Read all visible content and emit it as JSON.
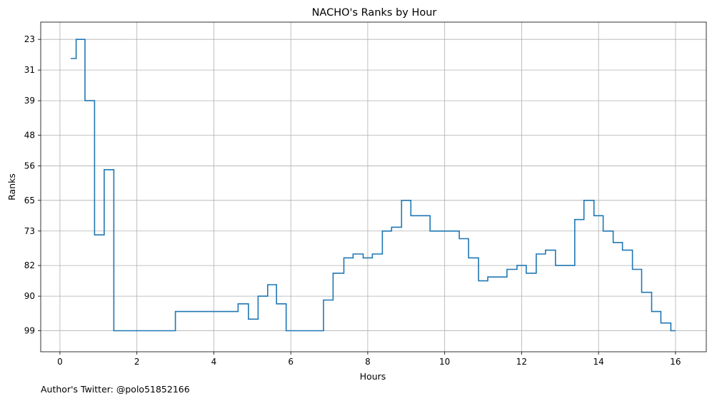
{
  "chart_data": {
    "type": "line",
    "drawstyle": "steps-post",
    "title": "NACHO's Ranks by Hour",
    "xlabel": "Hours",
    "ylabel": "Ranks",
    "xlim": [
      -0.5,
      16.8
    ],
    "ylim": [
      104.5,
      18.5
    ],
    "y_inverted": true,
    "x_ticks": [
      0,
      2,
      4,
      6,
      8,
      10,
      12,
      14,
      16
    ],
    "y_ticks": [
      23,
      31,
      39,
      48,
      56,
      65,
      73,
      82,
      90,
      99
    ],
    "grid": true,
    "line_color": "#1f77b4",
    "series": [
      {
        "x": [
          0.28,
          0.42,
          0.65,
          0.9,
          1.15,
          1.4,
          2.0,
          3.0,
          4.0,
          4.63,
          4.9,
          5.15,
          5.4,
          5.63,
          5.88,
          6.85,
          7.1,
          7.38,
          7.62,
          7.88,
          8.12,
          8.38,
          8.62,
          8.88,
          9.12,
          9.62,
          10.38,
          10.62,
          10.88,
          11.12,
          11.62,
          11.88,
          12.12,
          12.38,
          12.62,
          12.88,
          13.38,
          13.62,
          13.88,
          14.12,
          14.38,
          14.62,
          14.88,
          15.12,
          15.38,
          15.62,
          15.88,
          16.0
        ],
        "y": [
          28,
          23,
          39,
          74,
          57,
          99,
          99,
          94,
          94,
          92,
          96,
          90,
          87,
          92,
          99,
          91,
          84,
          80,
          79,
          80,
          79,
          73,
          72,
          65,
          69,
          73,
          75,
          80,
          86,
          85,
          83,
          82,
          84,
          79,
          78,
          82,
          70,
          65,
          69,
          73,
          76,
          78,
          83,
          89,
          94,
          97,
          99,
          99
        ]
      }
    ]
  },
  "footer_text": "Author's Twitter: @polo51852166"
}
